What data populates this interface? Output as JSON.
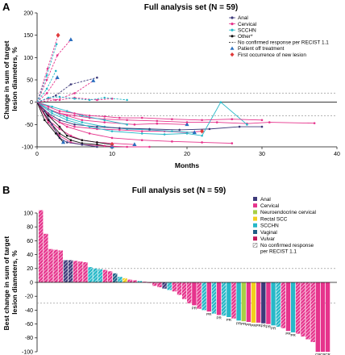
{
  "panel_a_letter": "A",
  "panel_b_letter": "B",
  "chart_data": [
    {
      "type": "line",
      "title": "Full analysis set (N = 59)",
      "xlabel": "Months",
      "ylabel": "Change in sum of target lesion diameters, %",
      "xlim": [
        0,
        40
      ],
      "ylim": [
        -100,
        200
      ],
      "xticks": [
        0,
        10,
        20,
        30,
        40
      ],
      "yticks": [
        -100,
        -50,
        0,
        50,
        100,
        150,
        200
      ],
      "reference_lines_y": [
        20,
        -30
      ],
      "legend_position": "top-right",
      "legend": [
        {
          "label": "Anal",
          "color": "#3d3a7a",
          "marker": "circle"
        },
        {
          "label": "Cervical",
          "color": "#e6338c",
          "marker": "circle"
        },
        {
          "label": "SCCHN",
          "color": "#26b8c8",
          "marker": "circle"
        },
        {
          "label": "Other*",
          "color": "#111111",
          "marker": "circle"
        },
        {
          "label": "No confirmed response per RECIST 1.1",
          "color": "#111111",
          "marker": "dashed-line"
        },
        {
          "label": "Patient off treatment",
          "color": "#2a6fbf",
          "marker": "triangle"
        },
        {
          "label": "First occurrence of new lesion",
          "color": "#e03a3a",
          "marker": "diamond"
        }
      ],
      "series": [
        {
          "type": "Cervical",
          "x": [
            0,
            1.3,
            2.7,
            4.5
          ],
          "y": [
            0,
            50,
            105,
            140
          ]
        },
        {
          "type": "Cervical",
          "x": [
            0,
            1.4,
            2.8
          ],
          "y": [
            0,
            75,
            150
          ]
        },
        {
          "type": "SCCHN",
          "x": [
            0,
            1.3,
            2.6
          ],
          "y": [
            0,
            60,
            130
          ]
        },
        {
          "type": "Cervical",
          "x": [
            0,
            1.3,
            2.7
          ],
          "y": [
            0,
            20,
            55
          ]
        },
        {
          "type": "SCCHN",
          "x": [
            0,
            1.3,
            2.5
          ],
          "y": [
            0,
            30,
            70
          ]
        },
        {
          "type": "Anal",
          "x": [
            0,
            2.5,
            4.5,
            8
          ],
          "y": [
            0,
            15,
            40,
            55
          ]
        },
        {
          "type": "Cervical",
          "x": [
            0,
            2.5,
            5,
            7.5
          ],
          "y": [
            0,
            5,
            20,
            48
          ]
        },
        {
          "type": "Cervical",
          "x": [
            0,
            1.5,
            3,
            5,
            8,
            10
          ],
          "y": [
            0,
            8,
            5,
            10,
            5,
            8
          ]
        },
        {
          "type": "SCCHN",
          "x": [
            0,
            1.5,
            3,
            5,
            7,
            9,
            12
          ],
          "y": [
            0,
            10,
            12,
            8,
            5,
            10,
            5
          ]
        },
        {
          "type": "Cervical",
          "x": [
            0,
            2,
            4,
            6,
            9,
            13,
            16,
            20
          ],
          "y": [
            0,
            -20,
            -30,
            -40,
            -45,
            -50,
            -48,
            -50
          ]
        },
        {
          "type": "Cervical",
          "x": [
            0,
            1.5,
            3,
            5,
            7,
            9,
            12,
            16,
            20,
            24,
            28,
            31,
            37
          ],
          "y": [
            0,
            -15,
            -25,
            -30,
            -35,
            -38,
            -40,
            -42,
            -45,
            -45,
            -48,
            -45,
            -47
          ]
        },
        {
          "type": "Cervical",
          "x": [
            0,
            1.5,
            3,
            5,
            8,
            11,
            14,
            17,
            20,
            22
          ],
          "y": [
            0,
            -30,
            -45,
            -55,
            -60,
            -62,
            -65,
            -65,
            -68,
            -65
          ]
        },
        {
          "type": "SCCHN",
          "x": [
            0,
            2,
            4,
            6,
            9,
            12,
            15,
            18,
            21
          ],
          "y": [
            0,
            -20,
            -35,
            -45,
            -55,
            -60,
            -62,
            -65,
            -68
          ]
        },
        {
          "type": "Anal",
          "x": [
            0,
            1.5,
            3,
            5,
            8,
            11,
            15,
            19,
            23,
            27,
            30
          ],
          "y": [
            0,
            -25,
            -40,
            -50,
            -55,
            -58,
            -60,
            -62,
            -60,
            -55,
            -55
          ]
        },
        {
          "type": "SCCHN",
          "x": [
            0,
            2,
            4,
            7,
            10,
            14,
            17,
            20,
            22,
            24.5,
            28
          ],
          "y": [
            0,
            -25,
            -40,
            -55,
            -65,
            -70,
            -72,
            -70,
            -75,
            0,
            -50
          ]
        },
        {
          "type": "Cervical",
          "x": [
            0,
            1.5,
            3,
            4.5,
            6,
            8,
            10,
            13
          ],
          "y": [
            0,
            -40,
            -60,
            -75,
            -85,
            -90,
            -92,
            -95
          ]
        },
        {
          "type": "Other*",
          "x": [
            0,
            1.5,
            3,
            4,
            6,
            8,
            10
          ],
          "y": [
            0,
            -30,
            -55,
            -75,
            -85,
            -90,
            -95
          ]
        },
        {
          "type": "Cervical",
          "x": [
            0,
            2,
            4,
            7,
            10,
            14,
            18,
            22,
            26
          ],
          "y": [
            0,
            -35,
            -55,
            -70,
            -80,
            -85,
            -88,
            -90,
            -92
          ]
        },
        {
          "type": "Other*",
          "x": [
            0,
            1.5,
            3,
            4.5,
            6,
            8,
            10
          ],
          "y": [
            0,
            -40,
            -70,
            -85,
            -92,
            -95,
            -100
          ]
        },
        {
          "type": "Cervical",
          "x": [
            0,
            1.5,
            3,
            4.5,
            6,
            9,
            12,
            15
          ],
          "y": [
            0,
            -45,
            -75,
            -90,
            -95,
            -98,
            -100,
            -100
          ]
        },
        {
          "type": "Anal",
          "x": [
            0,
            1,
            2,
            3,
            4,
            6,
            8
          ],
          "y": [
            0,
            -20,
            -50,
            -80,
            -90,
            -95,
            -100
          ]
        },
        {
          "type": "Other*",
          "x": [
            0,
            1,
            2.5,
            3.5
          ],
          "y": [
            0,
            -40,
            -70,
            -90
          ]
        },
        {
          "type": "SCCHN",
          "x": [
            0,
            2,
            4,
            6,
            9,
            12
          ],
          "y": [
            0,
            -10,
            -20,
            -30,
            -40,
            -50
          ]
        },
        {
          "type": "Cervical",
          "x": [
            0,
            1.5,
            3,
            5,
            7,
            9,
            11,
            14,
            18,
            22,
            26,
            30
          ],
          "y": [
            0,
            -10,
            -20,
            -25,
            -30,
            -32,
            -35,
            -35,
            -38,
            -40,
            -38,
            -40
          ]
        }
      ]
    },
    {
      "type": "bar",
      "title": "Full analysis set (N = 59)",
      "xlabel": "",
      "ylabel": "Best change in sum of target lesion diameters, %",
      "ylim": [
        -100,
        100
      ],
      "yticks": [
        -100,
        -80,
        -60,
        -40,
        -20,
        0,
        20,
        40,
        60,
        80,
        100
      ],
      "reference_lines_y": [
        20,
        -30
      ],
      "legend_position": "top-right",
      "legend": [
        {
          "label": "Anal",
          "color": "#3d3a7a"
        },
        {
          "label": "Cervical",
          "color": "#e6338c"
        },
        {
          "label": "Neuroendocrine cervical",
          "color": "#a8cf45"
        },
        {
          "label": "Rectal SCC",
          "color": "#f2cf1d"
        },
        {
          "label": "SCCHN",
          "color": "#26b8c8"
        },
        {
          "label": "Vaginal",
          "color": "#1f5f86"
        },
        {
          "label": "Vulvar",
          "color": "#c2185b"
        },
        {
          "label": "No confirmed response per RECIST 1.1",
          "color": "#ffffff",
          "hatched": true
        }
      ],
      "bar_annotation": "PR",
      "bar_annotation_cr": "CR",
      "series": [
        {
          "type": "Cervical",
          "value": 104,
          "hatched": true
        },
        {
          "type": "Cervical",
          "value": 70,
          "hatched": true
        },
        {
          "type": "Cervical",
          "value": 48,
          "hatched": true
        },
        {
          "type": "Cervical",
          "value": 47,
          "hatched": true
        },
        {
          "type": "Cervical",
          "value": 46,
          "hatched": true
        },
        {
          "type": "Anal",
          "value": 32,
          "hatched": true
        },
        {
          "type": "Anal",
          "value": 32,
          "hatched": true
        },
        {
          "type": "Cervical",
          "value": 31,
          "hatched": true
        },
        {
          "type": "Cervical",
          "value": 30,
          "hatched": true
        },
        {
          "type": "Cervical",
          "value": 29,
          "hatched": true
        },
        {
          "type": "SCCHN",
          "value": 22,
          "hatched": true
        },
        {
          "type": "SCCHN",
          "value": 20,
          "hatched": true
        },
        {
          "type": "SCCHN",
          "value": 19,
          "hatched": true
        },
        {
          "type": "Cervical",
          "value": 18,
          "hatched": true
        },
        {
          "type": "Cervical",
          "value": 16,
          "hatched": true
        },
        {
          "type": "Vaginal",
          "value": 13,
          "hatched": true
        },
        {
          "type": "SCCHN",
          "value": 8,
          "hatched": true
        },
        {
          "type": "Rectal SCC",
          "value": 6,
          "hatched": true
        },
        {
          "type": "Cervical",
          "value": 4,
          "hatched": true
        },
        {
          "type": "Cervical",
          "value": 3,
          "hatched": true
        },
        {
          "type": "SCCHN",
          "value": 2,
          "hatched": true
        },
        {
          "type": "Cervical",
          "value": 1,
          "hatched": true
        },
        {
          "type": "Cervical",
          "value": 0,
          "hatched": true
        },
        {
          "type": "Cervical",
          "value": -5,
          "hatched": true
        },
        {
          "type": "Cervical",
          "value": -7,
          "hatched": true
        },
        {
          "type": "Anal",
          "value": -9,
          "hatched": true
        },
        {
          "type": "SCCHN",
          "value": -11,
          "hatched": true
        },
        {
          "type": "Cervical",
          "value": -13,
          "hatched": true
        },
        {
          "type": "Cervical",
          "value": -18,
          "hatched": true
        },
        {
          "type": "Cervical",
          "value": -24,
          "hatched": true
        },
        {
          "type": "Cervical",
          "value": -30,
          "hatched": true
        },
        {
          "type": "Cervical",
          "value": -33,
          "hatched": false,
          "label": "PR"
        },
        {
          "type": "Cervical",
          "value": -38,
          "hatched": true
        },
        {
          "type": "SCCHN",
          "value": -40,
          "hatched": true
        },
        {
          "type": "Cervical",
          "value": -42,
          "hatched": false,
          "label": "PR"
        },
        {
          "type": "SCCHN",
          "value": -45,
          "hatched": true
        },
        {
          "type": "Cervical",
          "value": -47,
          "hatched": false,
          "label": "PR"
        },
        {
          "type": "SCCHN",
          "value": -48,
          "hatched": true
        },
        {
          "type": "SCCHN",
          "value": -50,
          "hatched": false,
          "label": "PR"
        },
        {
          "type": "Cervical",
          "value": -52,
          "hatched": true
        },
        {
          "type": "SCCHN",
          "value": -55,
          "hatched": false,
          "label": "PR"
        },
        {
          "type": "Neuroendocrine cervical",
          "value": -56,
          "hatched": false,
          "label": "PR"
        },
        {
          "type": "Cervical",
          "value": -57,
          "hatched": false,
          "label": "PR"
        },
        {
          "type": "Rectal SCC",
          "value": -58,
          "hatched": false,
          "label": "PR"
        },
        {
          "type": "Cervical",
          "value": -58,
          "hatched": false,
          "label": "PR"
        },
        {
          "type": "Anal",
          "value": -59,
          "hatched": false,
          "label": "PR"
        },
        {
          "type": "Cervical",
          "value": -60,
          "hatched": false,
          "label": "PR"
        },
        {
          "type": "SCCHN",
          "value": -62,
          "hatched": false,
          "label": "PR"
        },
        {
          "type": "SCCHN",
          "value": -64,
          "hatched": true
        },
        {
          "type": "Cervical",
          "value": -66,
          "hatched": true
        },
        {
          "type": "Cervical",
          "value": -70,
          "hatched": false,
          "label": "PR"
        },
        {
          "type": "SCCHN",
          "value": -72,
          "hatched": false,
          "label": "PR"
        },
        {
          "type": "Cervical",
          "value": -74,
          "hatched": true
        },
        {
          "type": "Cervical",
          "value": -78,
          "hatched": true
        },
        {
          "type": "Cervical",
          "value": -82,
          "hatched": true
        },
        {
          "type": "Cervical",
          "value": -86,
          "hatched": true
        },
        {
          "type": "Cervical",
          "value": -100,
          "hatched": false,
          "label": "CR"
        },
        {
          "type": "Cervical",
          "value": -100,
          "hatched": false,
          "label": "CR"
        },
        {
          "type": "Cervical",
          "value": -100,
          "hatched": false,
          "label": "CR"
        }
      ]
    }
  ]
}
